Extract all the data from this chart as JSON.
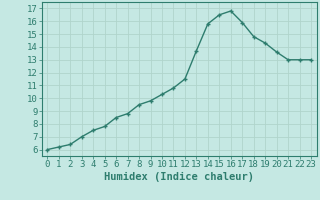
{
  "x": [
    0,
    1,
    2,
    3,
    4,
    5,
    6,
    7,
    8,
    9,
    10,
    11,
    12,
    13,
    14,
    15,
    16,
    17,
    18,
    19,
    20,
    21,
    22,
    23
  ],
  "y": [
    6.0,
    6.2,
    6.4,
    7.0,
    7.5,
    7.8,
    8.5,
    8.8,
    9.5,
    9.8,
    10.3,
    10.8,
    11.5,
    13.7,
    15.8,
    16.5,
    16.8,
    15.9,
    14.8,
    14.3,
    13.6,
    13.0,
    13.0,
    13.0
  ],
  "line_color": "#2e7d6e",
  "marker": "+",
  "bg_color": "#c5e8e3",
  "grid_color": "#b0d4cc",
  "xlabel": "Humidex (Indice chaleur)",
  "ylim": [
    5.5,
    17.5
  ],
  "xlim": [
    -0.5,
    23.5
  ],
  "yticks": [
    6,
    7,
    8,
    9,
    10,
    11,
    12,
    13,
    14,
    15,
    16,
    17
  ],
  "xticks": [
    0,
    1,
    2,
    3,
    4,
    5,
    6,
    7,
    8,
    9,
    10,
    11,
    12,
    13,
    14,
    15,
    16,
    17,
    18,
    19,
    20,
    21,
    22,
    23
  ],
  "tick_color": "#2e7d6e",
  "label_fontsize": 7.5,
  "tick_fontsize": 6.5
}
